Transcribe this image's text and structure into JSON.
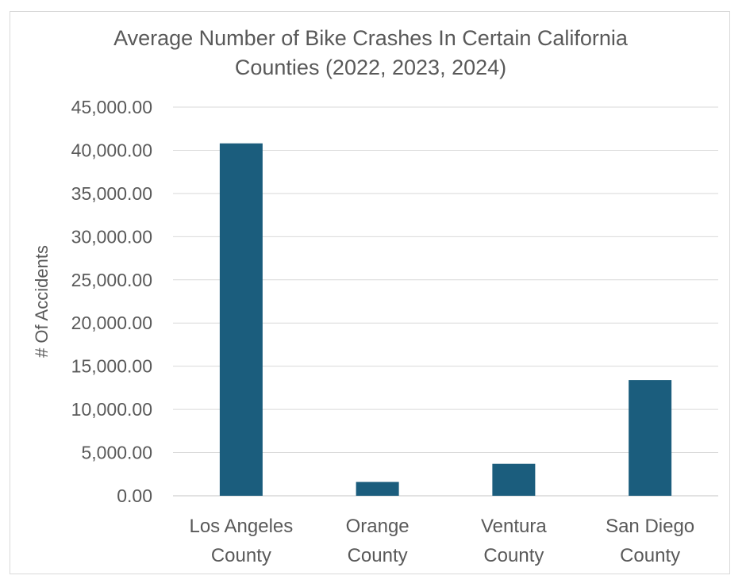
{
  "chart_data": {
    "type": "bar",
    "title": "Average Number of Bike Crashes In Certain California Counties (2022, 2023, 2024)",
    "title_lines": [
      "Average Number of Bike Crashes In Certain California",
      "Counties (2022, 2023, 2024)"
    ],
    "xlabel": "",
    "ylabel": "# Of Accidents",
    "categories": [
      "Los Angeles County",
      "Orange County",
      "Ventura County",
      "San Diego County"
    ],
    "category_lines": [
      [
        "Los Angeles",
        "County"
      ],
      [
        "Orange",
        "County"
      ],
      [
        "Ventura",
        "County"
      ],
      [
        "San Diego",
        "County"
      ]
    ],
    "values": [
      40800,
      1600,
      3700,
      13400
    ],
    "ylim": [
      0,
      45000
    ],
    "yticks": [
      0,
      5000,
      10000,
      15000,
      20000,
      25000,
      30000,
      35000,
      40000,
      45000
    ],
    "ytick_labels": [
      "0.00",
      "5,000.00",
      "10,000.00",
      "15,000.00",
      "20,000.00",
      "25,000.00",
      "30,000.00",
      "35,000.00",
      "40,000.00",
      "45,000.00"
    ],
    "grid": true,
    "legend": "none",
    "bar_color": "#1b5d7d",
    "grid_color": "#d9d9d9",
    "text_color": "#595959"
  }
}
